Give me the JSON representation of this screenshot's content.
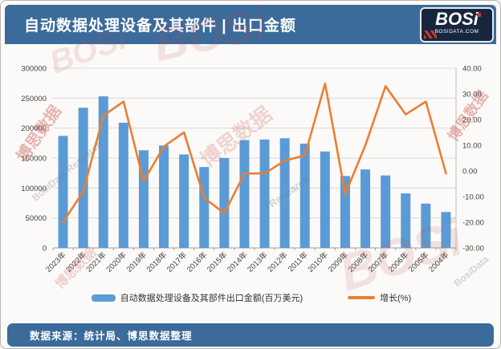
{
  "header": {
    "title": "自动数据处理设备及其部件 | 出口金额",
    "logo_text": "BOSi",
    "logo_sub": "BOSIDATA.COM"
  },
  "footer": {
    "source": "数据来源：统计局、博思数据整理"
  },
  "watermarks": [
    "博思数据",
    "BosiData Research",
    "BOSi",
    "博思数据",
    "Research",
    "BOSi",
    "博思数据",
    "BosiData",
    "博思数据",
    "BOSi"
  ],
  "chart_data": {
    "type": "bar",
    "subtype": "bar-line-combo",
    "title": "自动数据处理设备及其部件 | 出口金额",
    "categories": [
      "2023年",
      "2022年",
      "2021年",
      "2020年",
      "2019年",
      "2018年",
      "2017年",
      "2016年",
      "2015年",
      "2014年",
      "2013年",
      "2012年",
      "2011年",
      "2010年",
      "2009年",
      "2008年",
      "2007年",
      "2006年",
      "2005年",
      "2004年"
    ],
    "series": [
      {
        "name": "自动数据处理设备及其部件出口金额(百万美元)",
        "type": "bar",
        "axis": "left",
        "color": "#5b9bd5",
        "values": [
          187000,
          234000,
          253000,
          209000,
          163000,
          171000,
          156000,
          135000,
          150000,
          180000,
          181000,
          183000,
          174000,
          161000,
          120000,
          131000,
          121000,
          91000,
          74000,
          60000
        ]
      },
      {
        "name": "增长(%)",
        "type": "line",
        "axis": "right",
        "color": "#ed7d31",
        "values": [
          -20,
          -8,
          21.5,
          27,
          -4,
          9.5,
          15,
          -10.5,
          -16.5,
          -1,
          -1,
          4,
          6,
          34,
          -9,
          10,
          33,
          22,
          27,
          -1
        ]
      }
    ],
    "left_axis": {
      "min": 0,
      "max": 300000,
      "step": 50000,
      "ticks": [
        "300000",
        "250000",
        "200000",
        "150000",
        "100000",
        "50000",
        "0"
      ]
    },
    "right_axis": {
      "min": -30,
      "max": 40,
      "step": 10,
      "ticks": [
        "40.00",
        "30.00",
        "20.00",
        "10.00",
        "0.00",
        "-10.00",
        "-20.00",
        "-30.00"
      ]
    },
    "grid": true,
    "legend_position": "bottom",
    "gridline_color": "#d9d9d9",
    "axis_text_color": "#3f3f3f"
  }
}
